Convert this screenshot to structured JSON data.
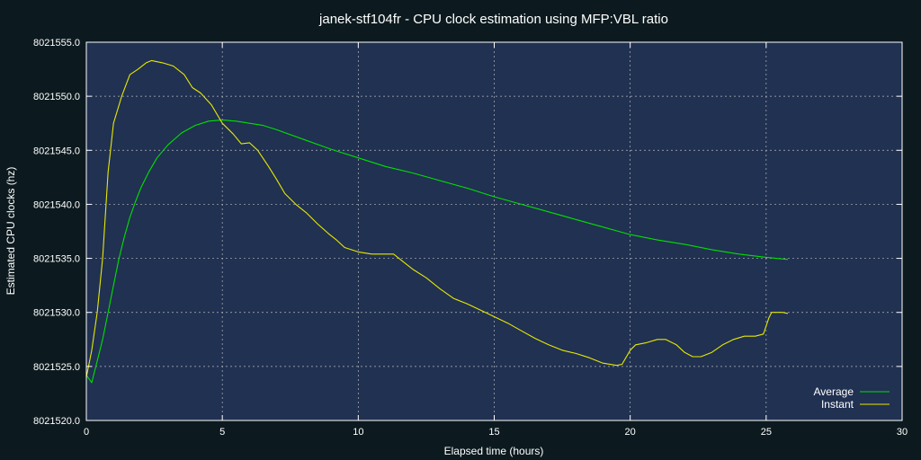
{
  "chart_data": {
    "type": "line",
    "title": "janek-stf104fr - CPU clock estimation using MFP:VBL ratio",
    "xlabel": "Elapsed time (hours)",
    "ylabel": "Estimated CPU clocks (hz)",
    "xlim": [
      0,
      30
    ],
    "ylim": [
      8021520.0,
      8021555.0
    ],
    "x_ticks": [
      "0",
      "5",
      "10",
      "15",
      "20",
      "25",
      "30"
    ],
    "y_ticks": [
      "8021520.0",
      "8021525.0",
      "8021530.0",
      "8021535.0",
      "8021540.0",
      "8021545.0",
      "8021550.0",
      "8021555.0"
    ],
    "grid": true,
    "legend": "bottom-right",
    "background_color": "#0c1a1f",
    "plot_background_color": "#203152",
    "series": [
      {
        "name": "Average",
        "color": "#00e000",
        "points": [
          [
            0,
            8021524.2
          ],
          [
            0.2,
            8021523.5
          ],
          [
            0.4,
            8021525.5
          ],
          [
            0.6,
            8021527.5
          ],
          [
            0.8,
            8021530.0
          ],
          [
            1.0,
            8021532.5
          ],
          [
            1.2,
            8021535.0
          ],
          [
            1.4,
            8021537.0
          ],
          [
            1.6,
            8021538.8
          ],
          [
            1.8,
            8021540.2
          ],
          [
            2.0,
            8021541.5
          ],
          [
            2.3,
            8021543.0
          ],
          [
            2.6,
            8021544.3
          ],
          [
            3.0,
            8021545.5
          ],
          [
            3.5,
            8021546.6
          ],
          [
            4.0,
            8021547.3
          ],
          [
            4.5,
            8021547.7
          ],
          [
            5.0,
            8021547.8
          ],
          [
            5.5,
            8021547.7
          ],
          [
            6.0,
            8021547.5
          ],
          [
            6.5,
            8021547.3
          ],
          [
            7.0,
            8021546.9
          ],
          [
            8.0,
            8021546.0
          ],
          [
            9.0,
            8021545.1
          ],
          [
            10.0,
            8021544.3
          ],
          [
            11.0,
            8021543.5
          ],
          [
            12.0,
            8021542.9
          ],
          [
            13.0,
            8021542.2
          ],
          [
            14.0,
            8021541.5
          ],
          [
            15.0,
            8021540.7
          ],
          [
            16.0,
            8021540.0
          ],
          [
            17.0,
            8021539.3
          ],
          [
            18.0,
            8021538.6
          ],
          [
            19.0,
            8021537.9
          ],
          [
            20.0,
            8021537.2
          ],
          [
            21.0,
            8021536.7
          ],
          [
            22.0,
            8021536.3
          ],
          [
            23.0,
            8021535.8
          ],
          [
            24.0,
            8021535.4
          ],
          [
            25.0,
            8021535.1
          ],
          [
            25.8,
            8021534.9
          ]
        ]
      },
      {
        "name": "Instant",
        "color": "#e8e800",
        "points": [
          [
            0,
            8021524.0
          ],
          [
            0.2,
            8021526.5
          ],
          [
            0.4,
            8021530.0
          ],
          [
            0.6,
            8021535.0
          ],
          [
            0.8,
            8021543.0
          ],
          [
            1.0,
            8021547.5
          ],
          [
            1.3,
            8021550.0
          ],
          [
            1.6,
            8021552.0
          ],
          [
            1.9,
            8021552.5
          ],
          [
            2.2,
            8021553.1
          ],
          [
            2.4,
            8021553.3
          ],
          [
            2.8,
            8021553.1
          ],
          [
            3.2,
            8021552.8
          ],
          [
            3.6,
            8021552.0
          ],
          [
            3.9,
            8021550.8
          ],
          [
            4.2,
            8021550.3
          ],
          [
            4.6,
            8021549.2
          ],
          [
            5.0,
            8021547.5
          ],
          [
            5.4,
            8021546.5
          ],
          [
            5.7,
            8021545.6
          ],
          [
            6.0,
            8021545.7
          ],
          [
            6.3,
            8021545.0
          ],
          [
            6.7,
            8021543.5
          ],
          [
            7.0,
            8021542.3
          ],
          [
            7.3,
            8021541.0
          ],
          [
            7.7,
            8021540.0
          ],
          [
            8.1,
            8021539.2
          ],
          [
            8.5,
            8021538.2
          ],
          [
            8.9,
            8021537.3
          ],
          [
            9.2,
            8021536.7
          ],
          [
            9.5,
            8021536.0
          ],
          [
            10.0,
            8021535.6
          ],
          [
            10.5,
            8021535.4
          ],
          [
            11.0,
            8021535.4
          ],
          [
            11.3,
            8021535.4
          ],
          [
            11.7,
            8021534.6
          ],
          [
            12.0,
            8021534.0
          ],
          [
            12.5,
            8021533.2
          ],
          [
            13.0,
            8021532.2
          ],
          [
            13.5,
            8021531.3
          ],
          [
            14.0,
            8021530.8
          ],
          [
            14.5,
            8021530.2
          ],
          [
            15.0,
            8021529.6
          ],
          [
            15.5,
            8021529.0
          ],
          [
            16.0,
            8021528.3
          ],
          [
            16.5,
            8021527.6
          ],
          [
            17.0,
            8021527.0
          ],
          [
            17.5,
            8021526.5
          ],
          [
            18.0,
            8021526.2
          ],
          [
            18.5,
            8021525.8
          ],
          [
            19.0,
            8021525.3
          ],
          [
            19.5,
            8021525.1
          ],
          [
            19.7,
            8021525.2
          ],
          [
            20.0,
            8021526.5
          ],
          [
            20.2,
            8021527.0
          ],
          [
            20.6,
            8021527.2
          ],
          [
            21.0,
            8021527.5
          ],
          [
            21.3,
            8021527.5
          ],
          [
            21.7,
            8021527.0
          ],
          [
            22.0,
            8021526.3
          ],
          [
            22.3,
            8021525.9
          ],
          [
            22.6,
            8021525.9
          ],
          [
            23.0,
            8021526.3
          ],
          [
            23.4,
            8021527.0
          ],
          [
            23.8,
            8021527.5
          ],
          [
            24.2,
            8021527.8
          ],
          [
            24.6,
            8021527.8
          ],
          [
            24.9,
            8021528.0
          ],
          [
            25.1,
            8021529.5
          ],
          [
            25.2,
            8021530.0
          ],
          [
            25.6,
            8021530.0
          ],
          [
            25.8,
            8021529.9
          ]
        ]
      }
    ]
  }
}
